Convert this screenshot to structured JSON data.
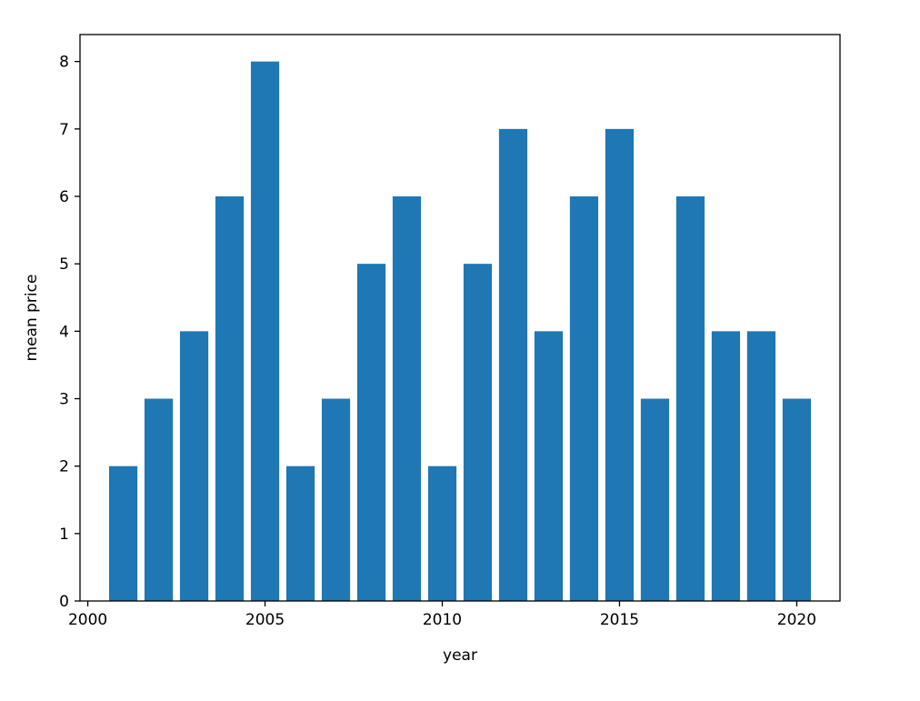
{
  "chart_data": {
    "type": "bar",
    "title": "",
    "xlabel": "year",
    "ylabel": "mean price",
    "bar_color": "#1f77b4",
    "x": [
      2001,
      2002,
      2003,
      2004,
      2005,
      2006,
      2007,
      2008,
      2009,
      2010,
      2011,
      2012,
      2013,
      2014,
      2015,
      2016,
      2017,
      2018,
      2019,
      2020
    ],
    "values": [
      2,
      3,
      4,
      6,
      8,
      2,
      3,
      5,
      6,
      2,
      5,
      7,
      4,
      6,
      7,
      3,
      6,
      4,
      4,
      3
    ],
    "bar_width": 0.8,
    "xlim": [
      1999.78,
      2021.22
    ],
    "ylim": [
      0,
      8.4
    ],
    "xticks": [
      2000,
      2005,
      2010,
      2015,
      2020
    ],
    "yticks": [
      0,
      1,
      2,
      3,
      4,
      5,
      6,
      7,
      8
    ],
    "grid": false,
    "legend": "none"
  }
}
